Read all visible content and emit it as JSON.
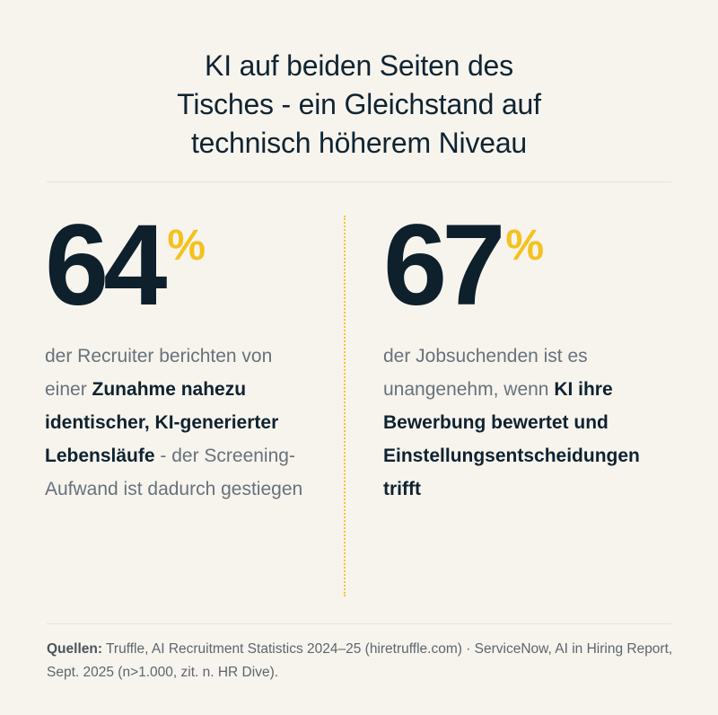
{
  "title": {
    "line1": "KI auf beiden Seiten des",
    "line2": "Tisches - ein Gleichstand auf",
    "line3": "technisch höherem Niveau"
  },
  "accent_color": "#f4c11f",
  "stats": [
    {
      "number": "64",
      "unit": "%",
      "text_before": "der Recruiter berichten von einer ",
      "bold": "Zunahme nahezu identischer, KI-generierter Lebensläufe",
      "text_after": " - der Screening-Aufwand ist dadurch gestiegen"
    },
    {
      "number": "67",
      "unit": "%",
      "text_before": "der Jobsuchenden ist es unangenehm, wenn ",
      "bold": "KI ihre Bewerbung bewertet und Einstellungsentscheidungen trifft",
      "text_after": ""
    }
  ],
  "footer": {
    "label": "Quellen:",
    "text": " Truffle, AI Recruitment Statistics 2024–25 (hiretruffle.com) · ServiceNow, AI in Hiring Report, Sept. 2025 (n>1.000, zit. n. HR Dive)."
  }
}
